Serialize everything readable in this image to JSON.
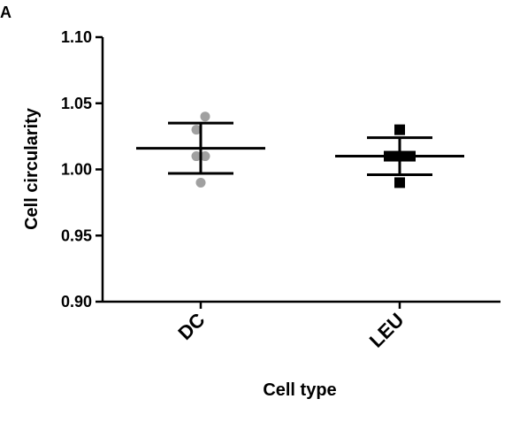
{
  "panel_label": "A",
  "chart_data": {
    "type": "scatter",
    "title": "",
    "xlabel": "Cell type",
    "ylabel": "Cell circularity",
    "categories": [
      "DC",
      "LEU"
    ],
    "ylim": [
      0.9,
      1.1
    ],
    "yticks": [
      "0.90",
      "0.95",
      "1.00",
      "1.05",
      "1.10"
    ],
    "grid": false,
    "series": [
      {
        "category": "DC",
        "marker": "circle",
        "color": "#a0a0a0",
        "points": [
          {
            "offset": -0.25,
            "value": 1.03
          },
          {
            "offset": 0.25,
            "value": 1.04
          },
          {
            "offset": -0.25,
            "value": 1.01
          },
          {
            "offset": 0.25,
            "value": 1.01
          },
          {
            "offset": 0,
            "value": 0.99
          }
        ],
        "mean": 1.016,
        "sd_upper": 1.035,
        "sd_lower": 0.997
      },
      {
        "category": "LEU",
        "marker": "square",
        "color": "#000000",
        "points": [
          {
            "offset": 0,
            "value": 1.03
          },
          {
            "offset": -0.6,
            "value": 1.01
          },
          {
            "offset": 0,
            "value": 1.01
          },
          {
            "offset": 0.6,
            "value": 1.01
          },
          {
            "offset": 0,
            "value": 0.99
          }
        ],
        "mean": 1.01,
        "sd_upper": 1.024,
        "sd_lower": 0.996
      }
    ]
  }
}
